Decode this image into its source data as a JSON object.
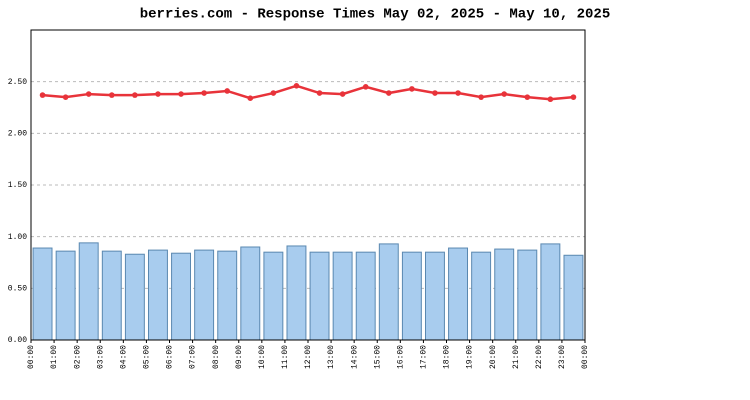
{
  "chart_data": {
    "type": "bar-line",
    "title": "berries.com - Response Times May 02, 2025 - May 10, 2025",
    "x_labels": [
      "00:00",
      "01:00",
      "02:00",
      "03:00",
      "04:00",
      "05:00",
      "06:00",
      "07:00",
      "08:00",
      "09:00",
      "10:00",
      "11:00",
      "12:00",
      "13:00",
      "14:00",
      "15:00",
      "16:00",
      "17:00",
      "18:00",
      "19:00",
      "20:00",
      "21:00",
      "22:00",
      "23:00",
      "00:00"
    ],
    "series": [
      {
        "type": "bar",
        "color": "#a8ccee",
        "values": [
          0.89,
          0.86,
          0.94,
          0.86,
          0.83,
          0.87,
          0.84,
          0.87,
          0.86,
          0.9,
          0.85,
          0.91,
          0.85,
          0.85,
          0.85,
          0.93,
          0.85,
          0.85,
          0.89,
          0.85,
          0.88,
          0.87,
          0.93,
          0.82
        ]
      },
      {
        "type": "line",
        "color": "#e8333a",
        "values": [
          2.37,
          2.35,
          2.38,
          2.37,
          2.37,
          2.38,
          2.38,
          2.39,
          2.41,
          2.34,
          2.39,
          2.46,
          2.39,
          2.38,
          2.45,
          2.39,
          2.43,
          2.39,
          2.39,
          2.35,
          2.38,
          2.35,
          2.33,
          2.35
        ]
      }
    ],
    "ylim": [
      0,
      3
    ],
    "yticks": [
      {
        "value": 0,
        "label": "0.00"
      },
      {
        "value": 0.5,
        "label": "0.50"
      },
      {
        "value": 1,
        "label": "1.00"
      },
      {
        "value": 1.5,
        "label": "1.50"
      },
      {
        "value": 2,
        "label": "2.00"
      },
      {
        "value": 2.5,
        "label": "2.50"
      }
    ],
    "grid": true
  }
}
